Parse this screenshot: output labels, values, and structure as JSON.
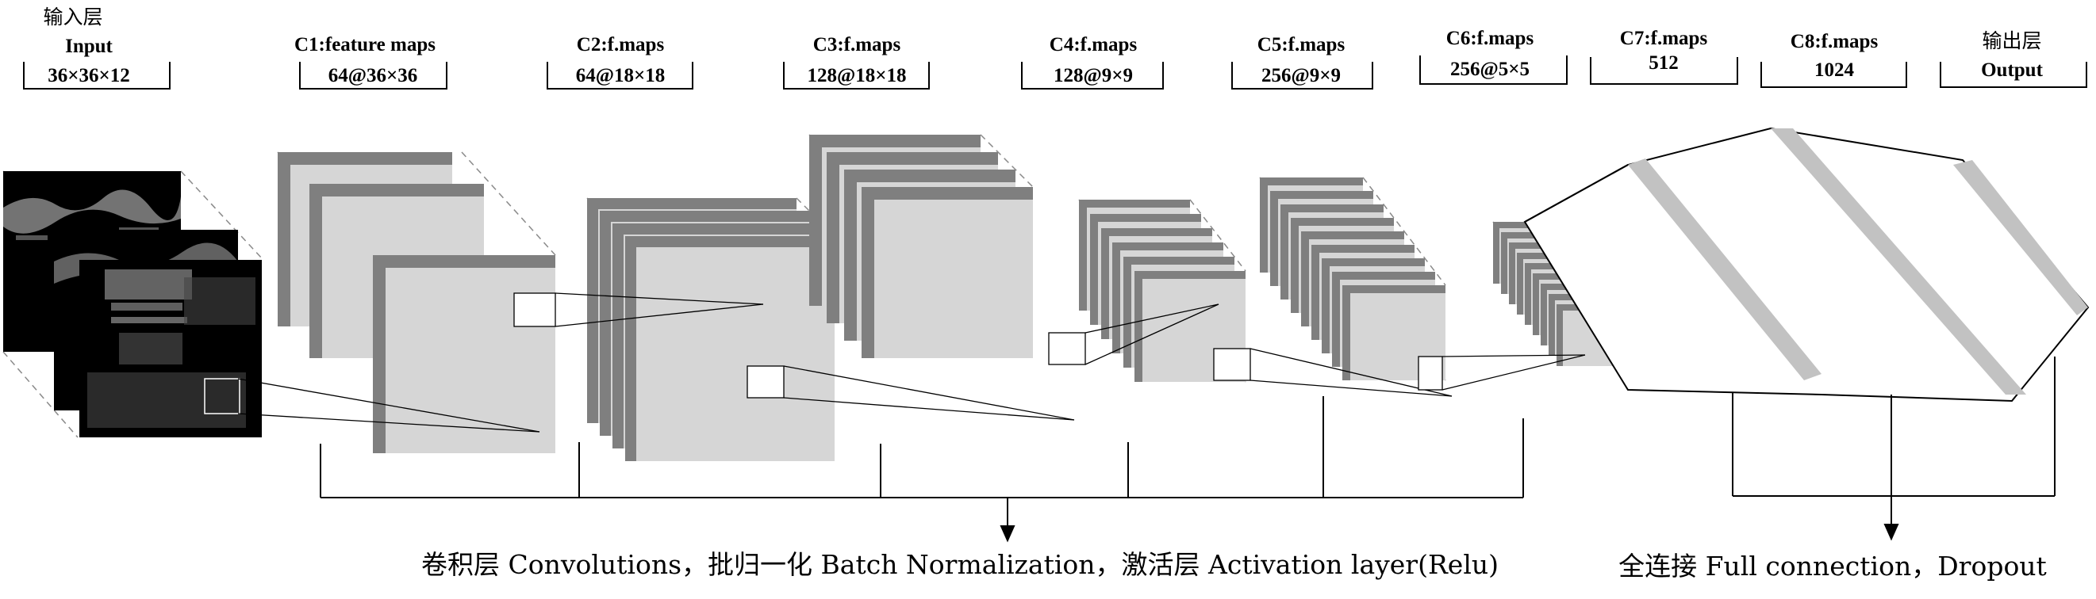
{
  "layers": [
    {
      "id": "input",
      "line1": "输入层",
      "line2": "Input",
      "line3": "36×36×12"
    },
    {
      "id": "c1",
      "line1": "C1:feature maps",
      "line2": "64@36×36"
    },
    {
      "id": "c2",
      "line1": "C2:f.maps",
      "line2": "64@18×18"
    },
    {
      "id": "c3",
      "line1": "C3:f.maps",
      "line2": "128@18×18"
    },
    {
      "id": "c4",
      "line1": "C4:f.maps",
      "line2": "128@9×9"
    },
    {
      "id": "c5",
      "line1": "C5:f.maps",
      "line2": "256@9×9"
    },
    {
      "id": "c6",
      "line1": "C6:f.maps",
      "line2": "256@5×5"
    },
    {
      "id": "c7",
      "line1": "C7:f.maps",
      "line2": "512"
    },
    {
      "id": "c8",
      "line1": "C8:f.maps",
      "line2": "1024"
    },
    {
      "id": "output",
      "line1": "输出层",
      "line2": "Output"
    }
  ],
  "captions": {
    "conv": "卷积层 Convolutions，批归一化 Batch Normalization，激活层 Activation layer(Relu)",
    "fc": "全连接 Full connection，Dropout"
  },
  "colors": {
    "map_face": "#d6d6d6",
    "map_edge": "#7f7f7f",
    "fc_band": "#c2c2c2",
    "line": "#000000",
    "dash": "#8a8a8a"
  }
}
